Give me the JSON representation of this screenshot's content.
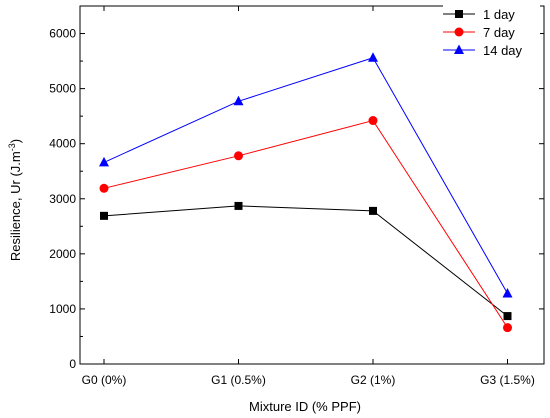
{
  "chart_data": {
    "type": "line",
    "title": "",
    "xlabel": "Mixture ID (% PPF)",
    "ylabel": "Resilience, Ur (J.m",
    "ylabel_superscript": "-3",
    "ylabel_close": ")",
    "categories": [
      "G0 (0%)",
      "G1 (0.5%)",
      "G2 (1%)",
      "G3 (1.5%)"
    ],
    "ylim": [
      0,
      6500
    ],
    "yticks": [
      0,
      1000,
      2000,
      3000,
      4000,
      5000,
      6000
    ],
    "legend_position": "top-right",
    "grid": false,
    "series": [
      {
        "name": "1 day",
        "color": "#000000",
        "marker": "square",
        "values": [
          2690,
          2870,
          2780,
          870
        ]
      },
      {
        "name": "7 day",
        "color": "#ff0000",
        "marker": "circle",
        "values": [
          3190,
          3780,
          4420,
          660
        ]
      },
      {
        "name": "14 day",
        "color": "#0000ff",
        "marker": "triangle",
        "values": [
          3660,
          4770,
          5560,
          1280
        ]
      }
    ]
  }
}
